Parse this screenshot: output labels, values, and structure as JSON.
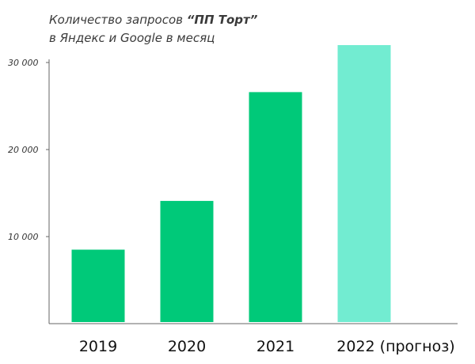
{
  "chart_data": {
    "type": "bar",
    "title_line1_prefix": "Количество запросов ",
    "title_line1_bold": "“ПП Торт”",
    "title_line2": "в Яндекс и Google в месяц",
    "categories": [
      "2019",
      "2020",
      "2021",
      "2022 (прогноз)"
    ],
    "values": [
      8500,
      14100,
      26600,
      32000
    ],
    "bar_colors": [
      "#00c979",
      "#00c979",
      "#00c979",
      "#72ecd1"
    ],
    "yticks": [
      {
        "value": 10000,
        "label": "10 000"
      },
      {
        "value": 20000,
        "label": "20 000"
      },
      {
        "value": 30000,
        "label": "30 000"
      }
    ],
    "ylim": [
      0,
      30000
    ],
    "grid": false,
    "xlabel": "",
    "ylabel": "",
    "axis_color": "#666666"
  }
}
